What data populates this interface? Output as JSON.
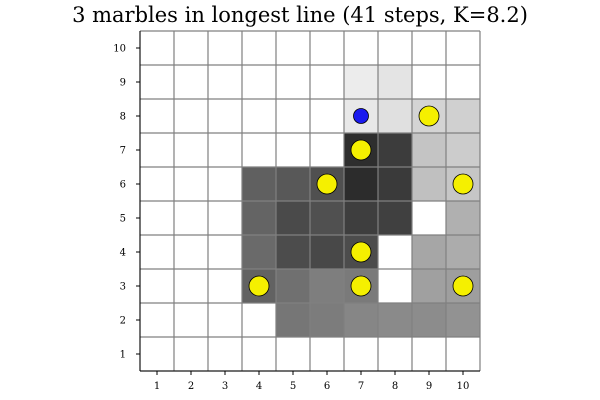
{
  "title": "3 marbles in longest line (41 steps, K=8.2)",
  "grid": {
    "cols": 10,
    "rows": 10,
    "x_ticks": [
      "1",
      "2",
      "3",
      "4",
      "5",
      "6",
      "7",
      "8",
      "9",
      "10"
    ],
    "y_ticks": [
      "1",
      "2",
      "3",
      "4",
      "5",
      "6",
      "7",
      "8",
      "9",
      "10"
    ],
    "grid_line_color": "#808080",
    "empty_cell_color": "#ffffff"
  },
  "shaded_cells": [
    {
      "x": 7,
      "y": 9,
      "color": "#ececec"
    },
    {
      "x": 8,
      "y": 9,
      "color": "#e4e4e4"
    },
    {
      "x": 7,
      "y": 8,
      "color": "#e8e8e8"
    },
    {
      "x": 8,
      "y": 8,
      "color": "#e0e0e0"
    },
    {
      "x": 9,
      "y": 8,
      "color": "#d4d4d4"
    },
    {
      "x": 10,
      "y": 8,
      "color": "#d0d0d0"
    },
    {
      "x": 7,
      "y": 7,
      "color": "#2e2e2e"
    },
    {
      "x": 8,
      "y": 7,
      "color": "#3c3c3c"
    },
    {
      "x": 9,
      "y": 7,
      "color": "#c4c4c4"
    },
    {
      "x": 10,
      "y": 7,
      "color": "#cccccc"
    },
    {
      "x": 4,
      "y": 6,
      "color": "#606060"
    },
    {
      "x": 5,
      "y": 6,
      "color": "#585858"
    },
    {
      "x": 6,
      "y": 6,
      "color": "#505050"
    },
    {
      "x": 7,
      "y": 6,
      "color": "#2c2c2c"
    },
    {
      "x": 8,
      "y": 6,
      "color": "#3a3a3a"
    },
    {
      "x": 9,
      "y": 6,
      "color": "#c0c0c0"
    },
    {
      "x": 10,
      "y": 6,
      "color": "#c6c6c6"
    },
    {
      "x": 4,
      "y": 5,
      "color": "#646464"
    },
    {
      "x": 5,
      "y": 5,
      "color": "#4a4a4a"
    },
    {
      "x": 6,
      "y": 5,
      "color": "#505050"
    },
    {
      "x": 7,
      "y": 5,
      "color": "#3e3e3e"
    },
    {
      "x": 8,
      "y": 5,
      "color": "#404040"
    },
    {
      "x": 10,
      "y": 5,
      "color": "#b0b0b0"
    },
    {
      "x": 4,
      "y": 4,
      "color": "#6a6a6a"
    },
    {
      "x": 5,
      "y": 4,
      "color": "#4c4c4c"
    },
    {
      "x": 6,
      "y": 4,
      "color": "#484848"
    },
    {
      "x": 7,
      "y": 4,
      "color": "#4c4c4c"
    },
    {
      "x": 9,
      "y": 4,
      "color": "#a6a6a6"
    },
    {
      "x": 10,
      "y": 4,
      "color": "#acacac"
    },
    {
      "x": 4,
      "y": 3,
      "color": "#626262"
    },
    {
      "x": 5,
      "y": 3,
      "color": "#707070"
    },
    {
      "x": 6,
      "y": 3,
      "color": "#7e7e7e"
    },
    {
      "x": 7,
      "y": 3,
      "color": "#7a7a7a"
    },
    {
      "x": 9,
      "y": 3,
      "color": "#a0a0a0"
    },
    {
      "x": 10,
      "y": 3,
      "color": "#9e9e9e"
    },
    {
      "x": 5,
      "y": 2,
      "color": "#767676"
    },
    {
      "x": 6,
      "y": 2,
      "color": "#7c7c7c"
    },
    {
      "x": 7,
      "y": 2,
      "color": "#868686"
    },
    {
      "x": 8,
      "y": 2,
      "color": "#8a8a8a"
    },
    {
      "x": 9,
      "y": 2,
      "color": "#8c8c8c"
    },
    {
      "x": 10,
      "y": 2,
      "color": "#929292"
    }
  ],
  "marbles": [
    {
      "x": 9,
      "y": 8,
      "color": "yellow"
    },
    {
      "x": 7,
      "y": 7,
      "color": "yellow"
    },
    {
      "x": 6,
      "y": 6,
      "color": "yellow"
    },
    {
      "x": 10,
      "y": 6,
      "color": "yellow"
    },
    {
      "x": 7,
      "y": 4,
      "color": "yellow"
    },
    {
      "x": 4,
      "y": 3,
      "color": "yellow"
    },
    {
      "x": 7,
      "y": 3,
      "color": "yellow"
    },
    {
      "x": 10,
      "y": 3,
      "color": "yellow"
    }
  ],
  "player": {
    "x": 7,
    "y": 8,
    "color": "blue"
  },
  "colors": {
    "yellow": "#f5f000",
    "blue": "#1a1aee",
    "marble_outline": "#000000",
    "axis": "#000000"
  }
}
